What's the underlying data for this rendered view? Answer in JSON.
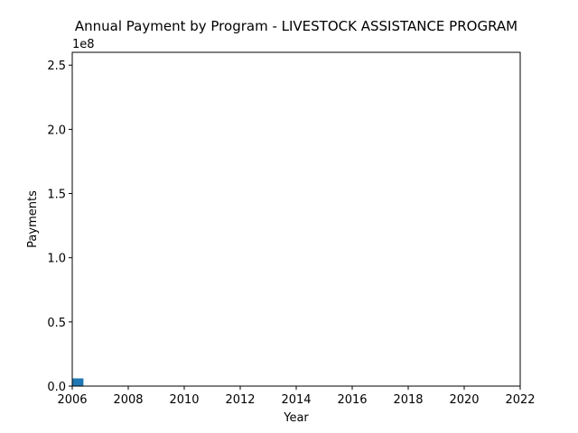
{
  "chart_data": {
    "type": "bar",
    "title": "Annual Payment by Program - LIVESTOCK ASSISTANCE PROGRAM",
    "xlabel": "Year",
    "ylabel": "Payments",
    "y_offset_label": "1e8",
    "xlim": [
      2006,
      2022
    ],
    "ylim": [
      0,
      260000000
    ],
    "x_ticks": [
      2006,
      2008,
      2010,
      2012,
      2014,
      2016,
      2018,
      2020,
      2022
    ],
    "x_tick_labels": [
      "2006",
      "2008",
      "2010",
      "2012",
      "2014",
      "2016",
      "2018",
      "2020",
      "2022"
    ],
    "y_ticks": [
      0,
      50000000,
      100000000,
      150000000,
      200000000,
      250000000
    ],
    "y_tick_labels": [
      "0.0",
      "0.5",
      "1.0",
      "1.5",
      "2.0",
      "2.5"
    ],
    "grid": false,
    "legend": "none",
    "bar_color": "#1f77b4",
    "series": [
      {
        "x": [
          2006
        ],
        "values": [
          6000000
        ]
      }
    ]
  }
}
